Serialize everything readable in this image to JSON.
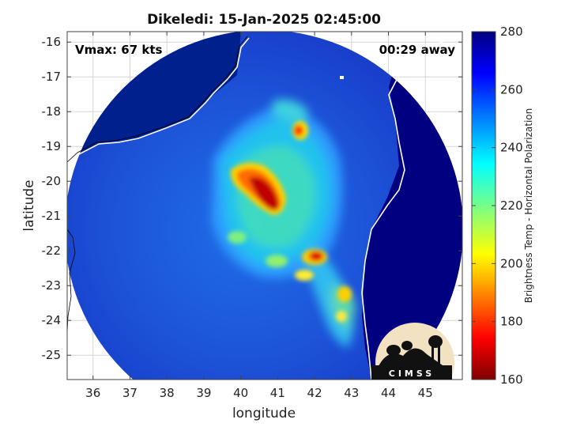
{
  "title": "Dikeledi: 15-Jan-2025 02:45:00",
  "xlabel": "longitude",
  "ylabel": "latitude",
  "vmax_label": "Vmax: 67 kts",
  "away_label": "00:29 away",
  "colorbar_label": "Brightness Temp - Horizontal Polarization",
  "logo_text": "CIMSS",
  "chart_data": {
    "type": "heatmap",
    "x_ticks": [
      36,
      37,
      38,
      39,
      40,
      41,
      42,
      43,
      44,
      45
    ],
    "y_ticks": [
      -16,
      -17,
      -18,
      -19,
      -20,
      -21,
      -22,
      -23,
      -24,
      -25
    ],
    "xlim": [
      35.3,
      46.0
    ],
    "ylim": [
      -25.7,
      -15.7
    ],
    "colorbar_ticks": [
      160,
      180,
      200,
      220,
      240,
      260,
      280
    ],
    "colorbar_range": [
      160,
      280
    ],
    "colormap": "jet",
    "grid": true
  },
  "colors": {
    "ocean_warm": "#1028b0",
    "land_outside": "#00007e",
    "coast": "#ffffff"
  }
}
